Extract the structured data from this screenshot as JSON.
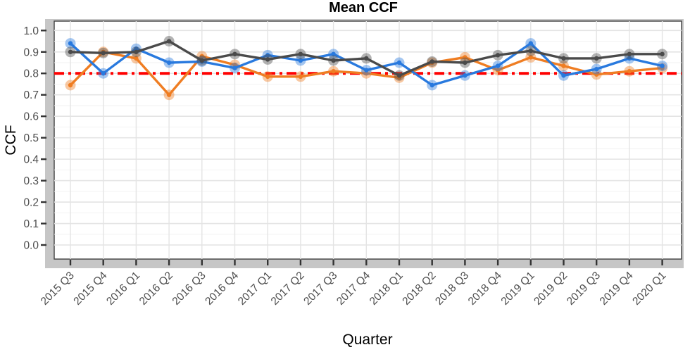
{
  "chart_data": {
    "type": "line",
    "title": "Mean CCF",
    "xlabel": "Quarter",
    "ylabel": "CCF",
    "ylim": [
      0.0,
      1.0
    ],
    "ytick_step": 0.1,
    "grid": true,
    "legend": false,
    "categories": [
      "2015 Q3",
      "2015 Q4",
      "2016 Q1",
      "2016 Q2",
      "2016 Q3",
      "2016 Q4",
      "2017 Q1",
      "2017 Q2",
      "2017 Q3",
      "2017 Q4",
      "2018 Q1",
      "2018 Q2",
      "2018 Q3",
      "2018 Q4",
      "2019 Q1",
      "2019 Q2",
      "2019 Q3",
      "2019 Q4",
      "2020 Q1"
    ],
    "series": [
      {
        "name": "orange-series",
        "color": "#EF7D22",
        "values": [
          0.745,
          0.9,
          0.87,
          0.7,
          0.88,
          0.84,
          0.785,
          0.785,
          0.81,
          0.8,
          0.78,
          0.85,
          0.875,
          0.815,
          0.875,
          0.835,
          0.795,
          0.81,
          0.825
        ]
      },
      {
        "name": "blue-series",
        "color": "#2879DE",
        "values": [
          0.94,
          0.8,
          0.915,
          0.85,
          0.855,
          0.825,
          0.885,
          0.86,
          0.89,
          0.815,
          0.85,
          0.745,
          0.79,
          0.835,
          0.94,
          0.79,
          0.82,
          0.87,
          0.835
        ]
      },
      {
        "name": "gray-series",
        "color": "#4A4A4A",
        "values": [
          0.9,
          0.895,
          0.9,
          0.95,
          0.86,
          0.89,
          0.865,
          0.89,
          0.86,
          0.87,
          0.79,
          0.855,
          0.85,
          0.885,
          0.905,
          0.87,
          0.87,
          0.89,
          0.89
        ]
      }
    ],
    "reference_line": {
      "value": 0.8,
      "color": "#FF0000",
      "style": "dash-dot"
    },
    "colors": {
      "panel_background": "#FFFFFF",
      "frame_gray": "#C6C6C6",
      "panel_border": "#3F3F3F",
      "grid_major": "#E4E4E4",
      "grid_minor": "#F2F2F2",
      "tick_mark": "#333333",
      "tick_text": "#4D4D4D"
    }
  }
}
